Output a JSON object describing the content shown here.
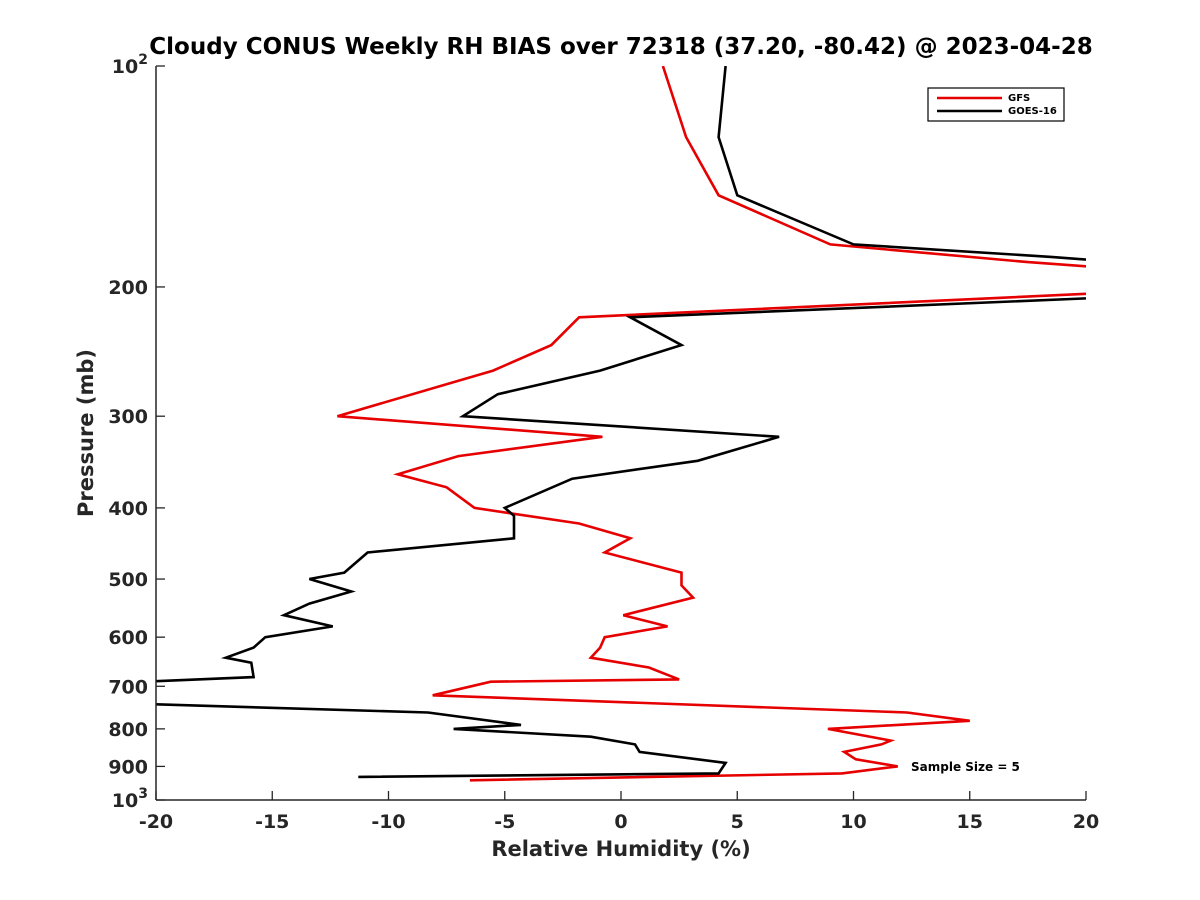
{
  "chart_data": {
    "type": "line",
    "title": "Cloudy CONUS Weekly RH BIAS over 72318 (37.20, -80.42) @ 2023-04-28",
    "xlabel": "Relative Humidity (%)",
    "ylabel": "Pressure (mb)",
    "xlim": [
      -20,
      20
    ],
    "ylim": [
      100,
      1000
    ],
    "yscale": "log",
    "y_reversed": true,
    "x_ticks": [
      -20,
      -15,
      -10,
      -5,
      0,
      5,
      10,
      15,
      20
    ],
    "y_ticks": [
      {
        "value": 100,
        "label": "10",
        "sup": "2"
      },
      {
        "value": 200,
        "label": "200"
      },
      {
        "value": 300,
        "label": "300"
      },
      {
        "value": 400,
        "label": "400"
      },
      {
        "value": 500,
        "label": "500"
      },
      {
        "value": 600,
        "label": "600"
      },
      {
        "value": 700,
        "label": "700"
      },
      {
        "value": 800,
        "label": "800"
      },
      {
        "value": 900,
        "label": "900"
      },
      {
        "value": 1000,
        "label": "10",
        "sup": "3"
      }
    ],
    "grid": false,
    "legend_position": "top-right",
    "annotation": "Sample Size = 5",
    "series": [
      {
        "name": "GFS",
        "color": "#e60000",
        "points": [
          [
            1.8,
            100
          ],
          [
            2.8,
            125
          ],
          [
            4.2,
            150
          ],
          [
            9.0,
            175
          ],
          [
            17.5,
            185
          ],
          [
            20.5,
            188
          ],
          [
            20.5,
            204
          ],
          [
            -1.8,
            220
          ],
          [
            -3.0,
            240
          ],
          [
            -5.5,
            260
          ],
          [
            -12.2,
            300
          ],
          [
            -0.8,
            320
          ],
          [
            -7.0,
            340
          ],
          [
            -9.6,
            360
          ],
          [
            -7.5,
            375
          ],
          [
            -6.3,
            400
          ],
          [
            -1.8,
            420
          ],
          [
            0.4,
            440
          ],
          [
            -0.7,
            460
          ],
          [
            2.6,
            490
          ],
          [
            2.6,
            510
          ],
          [
            3.1,
            530
          ],
          [
            0.1,
            560
          ],
          [
            2.0,
            580
          ],
          [
            -0.7,
            600
          ],
          [
            -0.9,
            620
          ],
          [
            -1.3,
            640
          ],
          [
            1.2,
            660
          ],
          [
            2.5,
            685
          ],
          [
            -5.6,
            690
          ],
          [
            -8.1,
            720
          ],
          [
            12.3,
            760
          ],
          [
            15.0,
            780
          ],
          [
            8.9,
            800
          ],
          [
            11.6,
            830
          ],
          [
            11.2,
            840
          ],
          [
            9.6,
            860
          ],
          [
            10.1,
            880
          ],
          [
            11.9,
            900
          ],
          [
            9.5,
            920
          ],
          [
            -6.5,
            940
          ]
        ]
      },
      {
        "name": "GOES-16",
        "color": "#000000",
        "points": [
          [
            4.5,
            100
          ],
          [
            4.2,
            125
          ],
          [
            5.0,
            150
          ],
          [
            10.0,
            175
          ],
          [
            18.5,
            182
          ],
          [
            20.5,
            184
          ],
          [
            20.5,
            207
          ],
          [
            0.4,
            220
          ],
          [
            2.6,
            240
          ],
          [
            -0.9,
            260
          ],
          [
            -5.3,
            280
          ],
          [
            -6.8,
            300
          ],
          [
            6.8,
            320
          ],
          [
            3.3,
            345
          ],
          [
            -2.1,
            365
          ],
          [
            -5.0,
            400
          ],
          [
            -4.6,
            410
          ],
          [
            -4.6,
            440
          ],
          [
            -10.9,
            460
          ],
          [
            -11.9,
            490
          ],
          [
            -13.4,
            500
          ],
          [
            -11.6,
            520
          ],
          [
            -13.4,
            540
          ],
          [
            -14.5,
            560
          ],
          [
            -12.4,
            580
          ],
          [
            -15.3,
            600
          ],
          [
            -15.8,
            620
          ],
          [
            -17.0,
            640
          ],
          [
            -15.9,
            650
          ],
          [
            -15.8,
            680
          ],
          [
            -20.5,
            690
          ],
          [
            -20.5,
            740
          ],
          [
            -8.3,
            760
          ],
          [
            -4.3,
            790
          ],
          [
            -7.2,
            800
          ],
          [
            -1.3,
            820
          ],
          [
            0.6,
            840
          ],
          [
            0.8,
            860
          ],
          [
            4.5,
            890
          ],
          [
            4.2,
            920
          ],
          [
            -11.3,
            930
          ]
        ]
      }
    ]
  }
}
